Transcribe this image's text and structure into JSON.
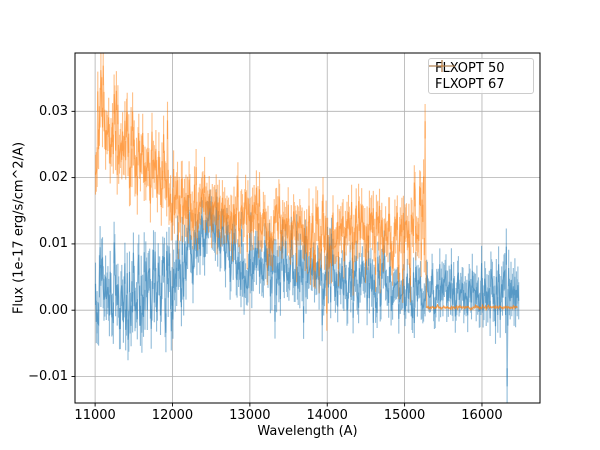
{
  "figure": {
    "background": "#ffffff",
    "frame_color": "#000000",
    "tick_color": "#000000"
  },
  "chart_data": {
    "type": "line",
    "style": "errorbar",
    "title": "",
    "xlabel": "Wavelength (A)",
    "ylabel": "Flux (1e-17 erg/s/cm^2/A)",
    "xlim": [
      10740,
      16750
    ],
    "ylim": [
      -0.014,
      0.0388
    ],
    "xticks": [
      11000,
      12000,
      13000,
      14000,
      15000,
      16000
    ],
    "xtick_labels": [
      "11000",
      "12000",
      "13000",
      "14000",
      "15000",
      "16000"
    ],
    "yticks": [
      -0.01,
      0.0,
      0.01,
      0.02,
      0.03
    ],
    "ytick_labels": [
      "−0.01",
      "0.00",
      "0.01",
      "0.02",
      "0.03"
    ],
    "grid": true,
    "grid_color": "#b0b0b0",
    "x_step": 10,
    "legend": {
      "position": "upper right",
      "entries": [
        "FLXOPT 50",
        "FLXOPT 67"
      ]
    },
    "series": [
      {
        "name": "FLXOPT 50",
        "color": "#1f77b4",
        "alpha": 0.5,
        "seed": 1337,
        "x_start": 11005,
        "x_end": 16475,
        "mean_anchors": [
          [
            11005,
            0.003
          ],
          [
            11400,
            0.002
          ],
          [
            11800,
            0.003
          ],
          [
            12100,
            0.006
          ],
          [
            12300,
            0.011
          ],
          [
            12500,
            0.013
          ],
          [
            12650,
            0.01
          ],
          [
            12900,
            0.0065
          ],
          [
            13200,
            0.005
          ],
          [
            13500,
            0.0065
          ],
          [
            13800,
            0.005
          ],
          [
            14100,
            0.0045
          ],
          [
            14500,
            0.0045
          ],
          [
            14900,
            0.003
          ],
          [
            15300,
            0.0035
          ],
          [
            15700,
            0.002
          ],
          [
            16100,
            0.003
          ],
          [
            16475,
            0.0025
          ]
        ],
        "sigma_anchors": [
          [
            11005,
            0.0042
          ],
          [
            11900,
            0.0038
          ],
          [
            12400,
            0.0022
          ],
          [
            12800,
            0.0028
          ],
          [
            13500,
            0.003
          ],
          [
            14200,
            0.0026
          ],
          [
            15000,
            0.0022
          ],
          [
            15600,
            0.002
          ],
          [
            16100,
            0.0024
          ],
          [
            16475,
            0.003
          ]
        ],
        "err_anchors": [
          [
            11005,
            0.0032
          ],
          [
            13000,
            0.0026
          ],
          [
            15000,
            0.0022
          ],
          [
            16475,
            0.0028
          ]
        ],
        "outliers": [
          [
            16325,
            -0.0115
          ],
          [
            11065,
            0.0095
          ]
        ]
      },
      {
        "name": "FLXOPT 67",
        "color": "#ff7f0e",
        "alpha": 0.5,
        "seed": 2024,
        "x_start": 11005,
        "x_end": 16455,
        "mean_anchors": [
          [
            11005,
            0.022
          ],
          [
            11075,
            0.028
          ],
          [
            11200,
            0.027
          ],
          [
            11400,
            0.0245
          ],
          [
            11650,
            0.022
          ],
          [
            11900,
            0.019
          ],
          [
            12150,
            0.016
          ],
          [
            12400,
            0.0165
          ],
          [
            12650,
            0.0145
          ],
          [
            12900,
            0.014
          ],
          [
            13150,
            0.0125
          ],
          [
            13450,
            0.0125
          ],
          [
            13750,
            0.0115
          ],
          [
            14050,
            0.011
          ],
          [
            14350,
            0.0115
          ],
          [
            14650,
            0.0115
          ],
          [
            14950,
            0.011
          ],
          [
            15150,
            0.012
          ],
          [
            15270,
            0.013
          ],
          [
            15278,
            0.0004
          ],
          [
            16455,
            0.0004
          ]
        ],
        "sigma_anchors": [
          [
            11005,
            0.0035
          ],
          [
            11600,
            0.0034
          ],
          [
            12300,
            0.0026
          ],
          [
            12900,
            0.0026
          ],
          [
            13600,
            0.0028
          ],
          [
            14400,
            0.0028
          ],
          [
            15100,
            0.0032
          ],
          [
            15270,
            0.005
          ],
          [
            15278,
            0.00012
          ],
          [
            16455,
            0.00012
          ]
        ],
        "err_anchors": [
          [
            11005,
            0.003
          ],
          [
            13000,
            0.0026
          ],
          [
            15270,
            0.0026
          ],
          [
            15278,
            0.00015
          ],
          [
            16455,
            0.00015
          ]
        ],
        "outliers": [
          [
            11035,
            0.033
          ],
          [
            11075,
            0.0362
          ],
          [
            15262,
            0.0285
          ]
        ]
      }
    ]
  }
}
